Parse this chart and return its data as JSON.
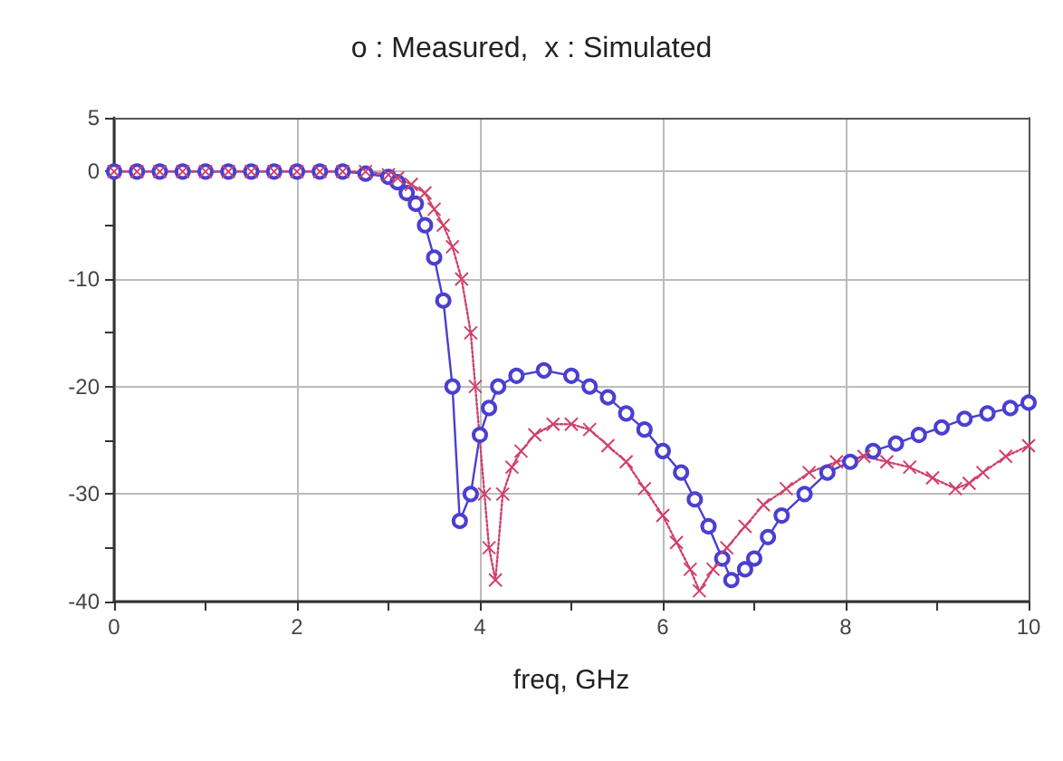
{
  "chart_data": {
    "type": "line",
    "title": "o : Measured,  x : Simulated",
    "xlabel": "freq, GHz",
    "xlim": [
      0,
      10
    ],
    "ylim": [
      -40,
      5
    ],
    "xticks": [
      0,
      {
        "value": 1,
        "label": null
      },
      2,
      {
        "value": 3,
        "label": null
      },
      4,
      {
        "value": 5,
        "label": null
      },
      6,
      {
        "value": 7,
        "label": null
      },
      8,
      {
        "value": 9,
        "label": null
      },
      10
    ],
    "yticks": [
      -40,
      {
        "value": -35,
        "label": null
      },
      -30,
      {
        "value": -25,
        "label": null
      },
      -20,
      {
        "value": -15,
        "label": null
      },
      -10,
      {
        "value": -5,
        "label": null
      },
      0,
      5
    ],
    "grid": true,
    "series": [
      {
        "color": "#4a3fd0",
        "marker": "circle",
        "line_style": "solid",
        "x": [
          0,
          0.25,
          0.5,
          0.75,
          1,
          1.25,
          1.5,
          1.75,
          2,
          2.25,
          2.5,
          2.75,
          3,
          3.1,
          3.2,
          3.3,
          3.4,
          3.5,
          3.6,
          3.7,
          3.78,
          3.9,
          4,
          4.1,
          4.2,
          4.4,
          4.7,
          5,
          5.2,
          5.4,
          5.6,
          5.8,
          6,
          6.2,
          6.35,
          6.5,
          6.65,
          6.75,
          6.9,
          7,
          7.15,
          7.3,
          7.55,
          7.8,
          8.05,
          8.3,
          8.55,
          8.8,
          9.05,
          9.3,
          9.55,
          9.8,
          10
        ],
        "values": [
          0,
          0,
          0,
          0,
          0,
          0,
          0,
          0,
          0,
          0,
          0,
          -0.2,
          -0.5,
          -1,
          -2,
          -3,
          -5,
          -8,
          -12,
          -20,
          -32.5,
          -30,
          -24.5,
          -22,
          -20,
          -19,
          -18.5,
          -19,
          -20,
          -21,
          -22.5,
          -24,
          -26,
          -28,
          -30.5,
          -33,
          -36,
          -38,
          -37,
          -36,
          -34,
          -32,
          -30,
          -28,
          -27,
          -26,
          -25.3,
          -24.5,
          -23.8,
          -23,
          -22.5,
          -22,
          -21.5
        ]
      },
      {
        "color": "#d0406a",
        "marker": "cross",
        "line_style": "dotted",
        "x": [
          0,
          0.25,
          0.5,
          0.75,
          1,
          1.25,
          1.5,
          1.75,
          2,
          2.25,
          2.5,
          2.75,
          3,
          3.1,
          3.25,
          3.4,
          3.5,
          3.6,
          3.7,
          3.8,
          3.9,
          3.95,
          4.05,
          4.1,
          4.17,
          4.25,
          4.35,
          4.45,
          4.6,
          4.8,
          5,
          5.2,
          5.4,
          5.6,
          5.8,
          6,
          6.15,
          6.3,
          6.4,
          6.55,
          6.7,
          6.9,
          7.1,
          7.35,
          7.6,
          7.9,
          8.2,
          8.45,
          8.7,
          8.95,
          9.2,
          9.35,
          9.5,
          9.75,
          10
        ],
        "values": [
          0,
          0,
          0,
          0,
          0,
          0,
          0,
          0,
          0,
          0,
          0,
          0,
          -0.3,
          -0.6,
          -1.2,
          -2,
          -3.5,
          -5,
          -7,
          -10,
          -15,
          -20,
          -30,
          -35,
          -38,
          -30,
          -27.5,
          -26,
          -24.5,
          -23.5,
          -23.5,
          -24,
          -25.5,
          -27,
          -29.5,
          -32,
          -34.5,
          -37,
          -39,
          -37,
          -35,
          -33,
          -31,
          -29.5,
          -28,
          -27,
          -26.5,
          -27,
          -27.5,
          -28.5,
          -29.5,
          -29,
          -28,
          -26.5,
          -25.5
        ]
      }
    ]
  }
}
